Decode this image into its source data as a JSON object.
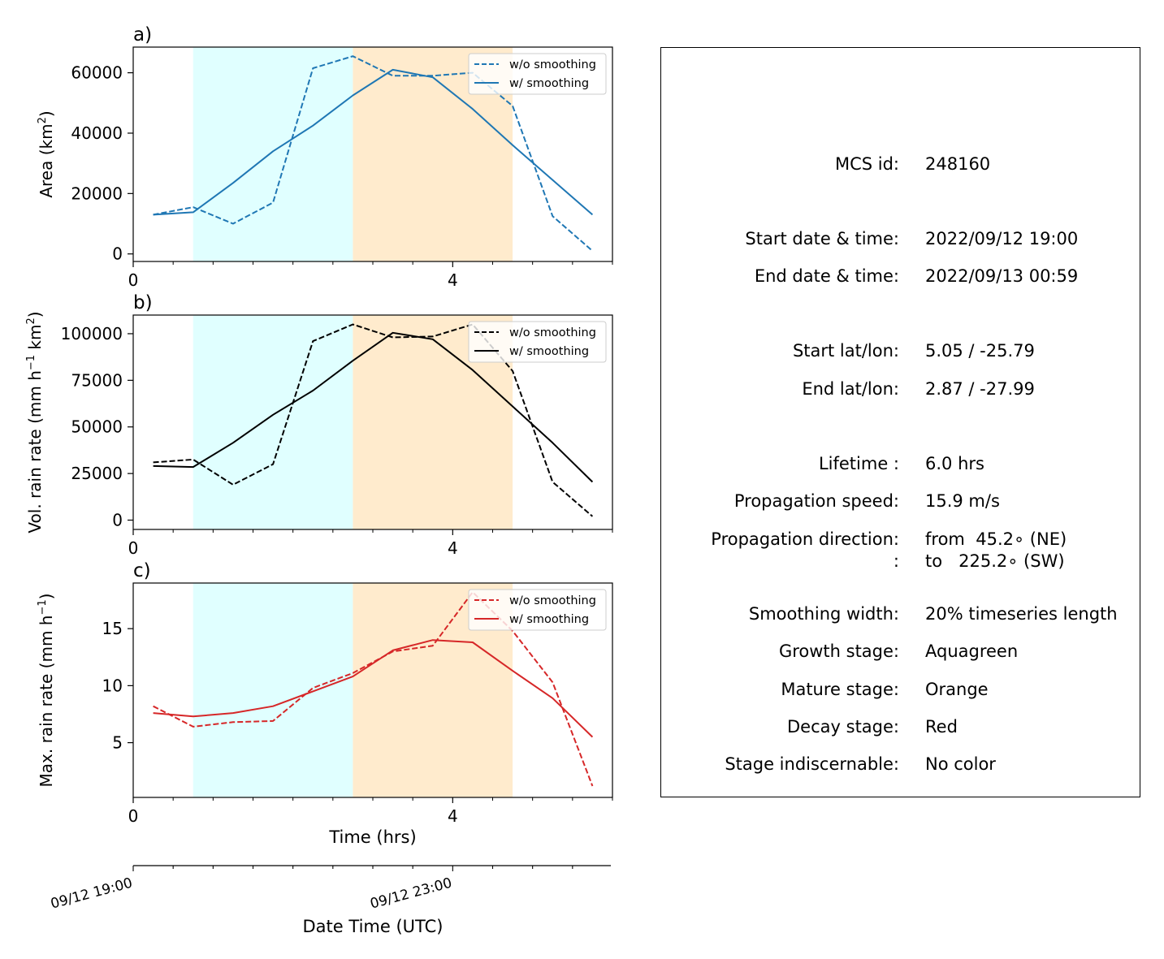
{
  "figure": {
    "x_tick_labels": [
      "0",
      "4"
    ],
    "xlabel": "Time (hrs)",
    "date_axis_label": "Date Time (UTC)",
    "date_tick_labels": [
      "09/12 19:00",
      "09/12 23:00"
    ],
    "stage_colors": {
      "growth": "#e0ffff",
      "mature": "#ffebcd"
    }
  },
  "chart_data": [
    {
      "type": "line",
      "panel_label": "a)",
      "ylabel": "Area  (km²)",
      "ylabel_main": "Area  (km",
      "ylabel_sup": "2",
      "ylabel_tail": ")",
      "xlim": [
        0,
        6
      ],
      "ylim": [
        -2500,
        68500
      ],
      "yticks": [
        0,
        20000,
        40000,
        60000
      ],
      "ytick_labels": [
        "0",
        "20000",
        "40000",
        "60000"
      ],
      "xticks_major": [
        0,
        4
      ],
      "stages": [
        {
          "stage": "growth",
          "x": [
            0.75,
            2.75
          ]
        },
        {
          "stage": "mature",
          "x": [
            2.75,
            4.75
          ]
        }
      ],
      "color": "#1f77b4",
      "x": [
        0.25,
        0.75,
        1.25,
        1.75,
        2.25,
        2.75,
        3.25,
        3.75,
        4.25,
        4.75,
        5.25,
        5.75
      ],
      "series": [
        {
          "name": "w/o smoothing",
          "style": "dashed",
          "values": [
            13000,
            15500,
            10000,
            17000,
            61500,
            65500,
            59000,
            59000,
            60000,
            49000,
            12500,
            1000
          ]
        },
        {
          "name": "w/ smoothing",
          "style": "solid",
          "values": [
            13000,
            13800,
            23500,
            34000,
            42500,
            52500,
            61000,
            58500,
            48000,
            36000,
            24500,
            13000
          ]
        }
      ]
    },
    {
      "type": "line",
      "panel_label": "b)",
      "ylabel": "Vol. rain rate (mm h⁻¹ km²)",
      "ylabel_main": "Vol. rain rate (mm h",
      "ylabel_sup": "−1",
      "ylabel_mid": " km",
      "ylabel_sup2": "2",
      "ylabel_tail": ")",
      "xlim": [
        0,
        6
      ],
      "ylim": [
        -5000,
        110000
      ],
      "yticks": [
        0,
        25000,
        50000,
        75000,
        100000
      ],
      "ytick_labels": [
        "0",
        "25000",
        "50000",
        "75000",
        "100000"
      ],
      "xticks_major": [
        0,
        4
      ],
      "stages": [
        {
          "stage": "growth",
          "x": [
            0.75,
            2.75
          ]
        },
        {
          "stage": "mature",
          "x": [
            2.75,
            4.75
          ]
        }
      ],
      "color": "#000000",
      "x": [
        0.25,
        0.75,
        1.25,
        1.75,
        2.25,
        2.75,
        3.25,
        3.75,
        4.25,
        4.75,
        5.25,
        5.75
      ],
      "series": [
        {
          "name": "w/o smoothing",
          "style": "dashed",
          "values": [
            31000,
            32500,
            19000,
            30000,
            96000,
            105000,
            98000,
            98500,
            105000,
            80000,
            20500,
            2000
          ]
        },
        {
          "name": "w/ smoothing",
          "style": "solid",
          "values": [
            29000,
            28500,
            41500,
            56500,
            69500,
            85500,
            100500,
            97000,
            80500,
            61000,
            41500,
            20500
          ]
        }
      ]
    },
    {
      "type": "line",
      "panel_label": "c)",
      "ylabel": "Max. rain rate  (mm h⁻¹)",
      "ylabel_main": "Max. rain rate  (mm h",
      "ylabel_sup": "−1",
      "ylabel_tail": ")",
      "xlim": [
        0,
        6
      ],
      "ylim": [
        0.2,
        19.0
      ],
      "yticks": [
        5,
        10,
        15
      ],
      "ytick_labels": [
        "5",
        "10",
        "15"
      ],
      "xticks_major": [
        0,
        4
      ],
      "stages": [
        {
          "stage": "growth",
          "x": [
            0.75,
            2.75
          ]
        },
        {
          "stage": "mature",
          "x": [
            2.75,
            4.75
          ]
        }
      ],
      "color": "#d62728",
      "x": [
        0.25,
        0.75,
        1.25,
        1.75,
        2.25,
        2.75,
        3.25,
        3.75,
        4.25,
        4.75,
        5.25,
        5.75
      ],
      "series": [
        {
          "name": "w/o smoothing",
          "style": "dashed",
          "values": [
            8.2,
            6.4,
            6.8,
            6.9,
            9.8,
            11.1,
            13.0,
            13.5,
            18.2,
            14.8,
            10.3,
            1.2
          ]
        },
        {
          "name": "w/ smoothing",
          "style": "solid",
          "values": [
            7.6,
            7.3,
            7.6,
            8.2,
            9.5,
            10.8,
            13.1,
            14.0,
            13.8,
            11.3,
            8.9,
            5.5
          ]
        }
      ]
    }
  ],
  "info": {
    "rows": [
      {
        "label": "MCS id:",
        "value": "248160"
      },
      {
        "label": "Start date & time:",
        "value": "2022/09/12 19:00"
      },
      {
        "label": "End date & time:",
        "value": "2022/09/13 00:59"
      },
      {
        "label": "Start lat/lon:",
        "value": "5.05 / -25.79"
      },
      {
        "label": "End lat/lon:",
        "value": "2.87 / -27.99"
      },
      {
        "label": "Lifetime :",
        "value": "6.0 hrs"
      },
      {
        "label": "Propagation speed:",
        "value": "15.9 m/s"
      },
      {
        "label": "Propagation direction:",
        "value": "from  45.2∘ (NE)"
      },
      {
        "label": ":",
        "value": "to   225.2∘ (SW)"
      },
      {
        "label": "Smoothing width:",
        "value": "20% timeseries length"
      },
      {
        "label": "Growth stage:",
        "value": "Aquagreen"
      },
      {
        "label": "Mature stage:",
        "value": "Orange"
      },
      {
        "label": "Decay stage:",
        "value": "Red"
      },
      {
        "label": "Stage indiscernable:",
        "value": "No color"
      }
    ]
  }
}
